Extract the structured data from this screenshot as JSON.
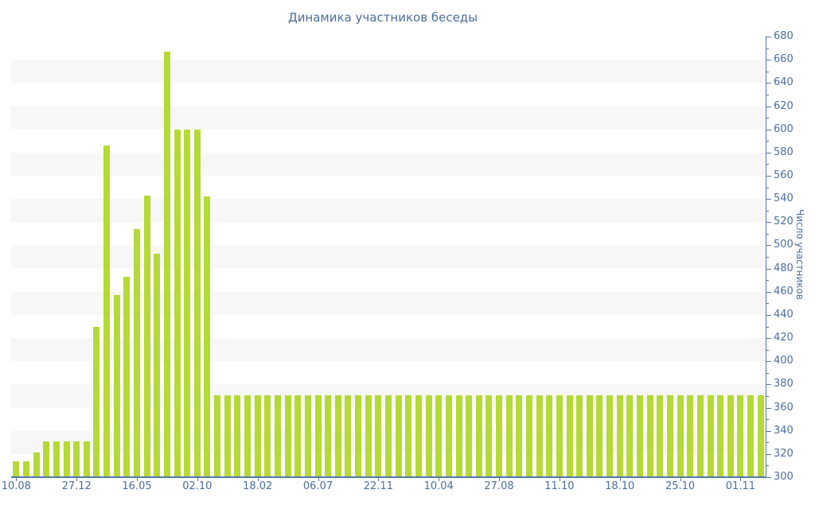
{
  "title": "Динамика участников беседы",
  "colors": {
    "bar": "#b5d936",
    "alternate_band": "#f7f7f7",
    "axis_line": "#5577aa",
    "text": "#4d6d9e",
    "background": "#ffffff"
  },
  "chart_data": {
    "type": "bar",
    "title": "Динамика участников беседы",
    "xlabel": "",
    "ylabel": "Число участников",
    "ylim": [
      300,
      680
    ],
    "y_tick_step": 20,
    "y_minor_tick_step": 10,
    "y_tick_labels": [
      680,
      660,
      640,
      620,
      600,
      580,
      560,
      540,
      520,
      500,
      480,
      460,
      440,
      420,
      400,
      380,
      360,
      340,
      320,
      300
    ],
    "grid": "alternating horizontal bands every 20 units",
    "legend": "none",
    "x_tick_labels": [
      "10.08",
      "27.12",
      "16.05",
      "02.10",
      "18.02",
      "06.07",
      "22.11",
      "10.04",
      "27.08",
      "11.10",
      "18.10",
      "25.10",
      "01.11"
    ],
    "x_tick_every": 6,
    "values": [
      314,
      314,
      321,
      331,
      331,
      331,
      331,
      331,
      430,
      586,
      457,
      473,
      514,
      543,
      493,
      667,
      600,
      600,
      600,
      542,
      371,
      371,
      371,
      371,
      371,
      371,
      371,
      371,
      371,
      371,
      371,
      371,
      371,
      371,
      371,
      371,
      371,
      371,
      371,
      371,
      371,
      371,
      371,
      371,
      371,
      371,
      371,
      371,
      371,
      371,
      371,
      371,
      371,
      371,
      371,
      371,
      371,
      371,
      371,
      371,
      371,
      371,
      371,
      371,
      371,
      371,
      371,
      371,
      371,
      371,
      371,
      371,
      371,
      371,
      371
    ]
  }
}
